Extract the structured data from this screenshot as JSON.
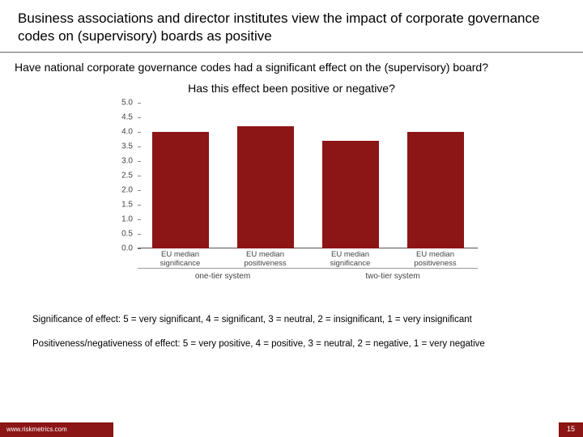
{
  "title": "Business associations and director institutes view the impact of corporate governance codes on (supervisory) boards as positive",
  "subtitle1": "Have national corporate governance codes had a significant effect on the (supervisory) board?",
  "subtitle2": "Has this effect been positive or negative?",
  "chart": {
    "type": "bar",
    "ylim": [
      0,
      5
    ],
    "ytick_step": 0.5,
    "yticks": [
      "5.0",
      "4.5",
      "4.0",
      "3.5",
      "3.0",
      "2.5",
      "2.0",
      "1.5",
      "1.0",
      "0.5",
      "0.0"
    ],
    "bar_color": "#8c1515",
    "background_color": "#ffffff",
    "axis_color": "#555555",
    "label_color": "#444444",
    "label_fontsize": 10,
    "bars": [
      {
        "label": "EU median significance",
        "value": 4.0
      },
      {
        "label": "EU median positiveness",
        "value": 4.2
      },
      {
        "label": "EU median significance",
        "value": 3.7
      },
      {
        "label": "EU median positiveness",
        "value": 4.0
      }
    ],
    "groups": [
      {
        "label": "one-tier system"
      },
      {
        "label": "two-tier system"
      }
    ]
  },
  "legend1": "Significance of effect: 5 = very significant, 4 = significant, 3 = neutral, 2 = insignificant, 1 = very insignificant",
  "legend2": "Positiveness/negativeness of effect: 5 = very positive, 4 = positive, 3 = neutral, 2 = negative, 1 = very negative",
  "footer_url": "www.riskmetrics.com",
  "page_number": "15"
}
